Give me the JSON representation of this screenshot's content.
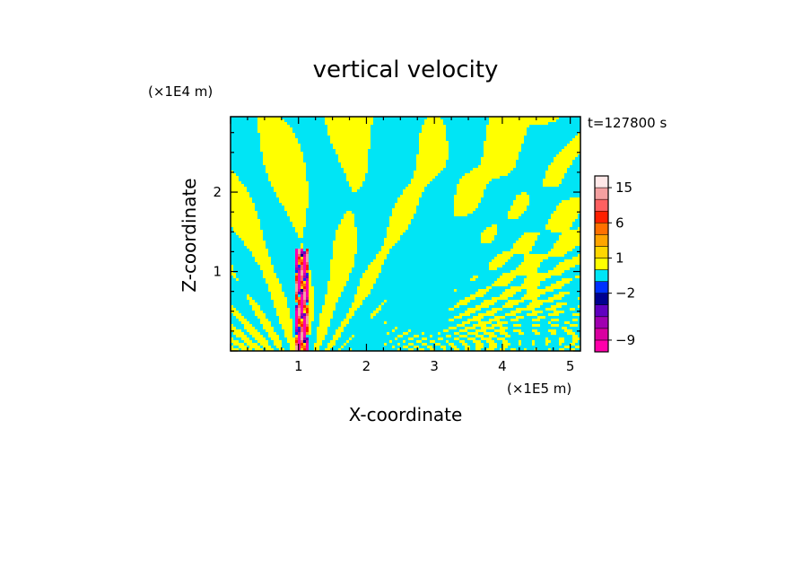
{
  "chart_data": {
    "type": "heatmap",
    "title": "vertical velocity",
    "xlabel": "X-coordinate",
    "ylabel": "Z-coordinate",
    "x_unit": "(×1E5 m)",
    "y_unit": "(×1E4 m)",
    "time_label": "t=127800 s",
    "xlim": [
      0,
      5.15
    ],
    "ylim": [
      0,
      2.95
    ],
    "x_ticks": [
      1,
      2,
      3,
      4,
      5
    ],
    "y_ticks": [
      1,
      2
    ],
    "colorbar": {
      "labels": [
        {
          "text": "15",
          "value": 15
        },
        {
          "text": "6",
          "value": 6
        },
        {
          "text": "1",
          "value": 1
        },
        {
          "text": "−2",
          "value": -2
        },
        {
          "text": "−9",
          "value": -9
        }
      ],
      "levels": [
        {
          "lower": -12,
          "upper": -9,
          "color": "#ff00aa"
        },
        {
          "lower": -9,
          "upper": -7,
          "color": "#d900a0"
        },
        {
          "lower": -7,
          "upper": -5,
          "color": "#a000b0"
        },
        {
          "lower": -5,
          "upper": -3,
          "color": "#6000c0"
        },
        {
          "lower": -3,
          "upper": -2,
          "color": "#000090"
        },
        {
          "lower": -2,
          "upper": -1,
          "color": "#0030ff"
        },
        {
          "lower": -1,
          "upper": 0,
          "color": "#00e5f5"
        },
        {
          "lower": 0,
          "upper": 1,
          "color": "#ffff00"
        },
        {
          "lower": 1,
          "upper": 2,
          "color": "#ffd700"
        },
        {
          "lower": 2,
          "upper": 4,
          "color": "#ffa500"
        },
        {
          "lower": 4,
          "upper": 6,
          "color": "#ff7000"
        },
        {
          "lower": 6,
          "upper": 10,
          "color": "#ff2000"
        },
        {
          "lower": 10,
          "upper": 13,
          "color": "#ff6060"
        },
        {
          "lower": 13,
          "upper": 15,
          "color": "#f4a0a0"
        },
        {
          "lower": 15,
          "upper": 20,
          "color": "#ffe8e8"
        }
      ]
    },
    "field_colors": {
      "positive": "#ffff00",
      "negative": "#00e5f5"
    }
  }
}
